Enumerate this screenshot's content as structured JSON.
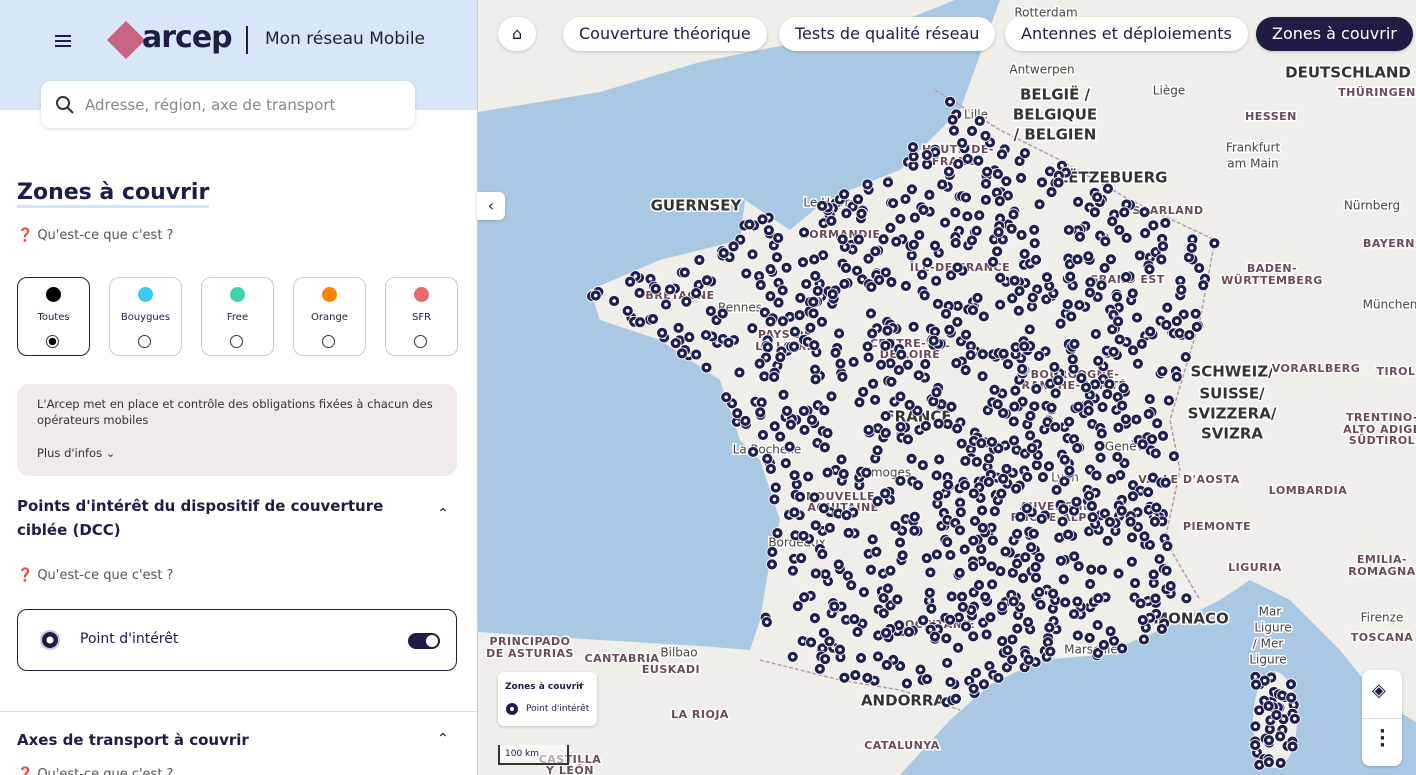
{
  "header": {
    "logo": "arcep",
    "app_name": "Mon réseau Mobile",
    "search_placeholder": "Adresse, région, axe de transport"
  },
  "nav": {
    "tabs": [
      "Couverture théorique",
      "Tests de qualité réseau",
      "Antennes et déploiements",
      "Zones à couvrir"
    ],
    "active": 3
  },
  "panel": {
    "title": "Zones à couvrir",
    "help": "Qu'est-ce que c'est ?",
    "operators": [
      {
        "name": "Toutes",
        "color": "#000000"
      },
      {
        "name": "Bouygues",
        "color": "#3cc8ef"
      },
      {
        "name": "Free",
        "color": "#3ed3b0"
      },
      {
        "name": "Orange",
        "color": "#ff8200"
      },
      {
        "name": "SFR",
        "color": "#e86a6a"
      }
    ],
    "selected_operator": 0,
    "info": "L'Arcep met en place et contrôle des obligations fixées à chacun des opérateurs mobiles",
    "more": "Plus d'infos",
    "sections": [
      {
        "title": "Points d'intérêt du dispositif de couverture ciblée (DCC)",
        "help": "Qu'est-ce que c'est ?",
        "toggle": {
          "label": "Point d'intérêt",
          "on": true
        }
      },
      {
        "title": "Axes de transport à couvrir",
        "help": "Qu'est-ce que c'est ?"
      }
    ]
  },
  "map": {
    "legend": {
      "title": "Zones à couvrir",
      "item": "Point d'intérêt"
    },
    "scale": "100 km",
    "labels": [
      "Rotterdam",
      "Antwerpen",
      "BELGIË /",
      "BELGIQUE",
      "/ BELGIEN",
      "Lille",
      "Liège",
      "DEUTSCHLAND",
      "THÜRINGEN",
      "HESSEN",
      "Frankfurt",
      "am Main",
      "LËTZEBUERG",
      "SAARLAND",
      "Nürnberg",
      "BAYERN",
      "BADEN-",
      "WÜRTTEMBERG",
      "München",
      "GUERNSEY",
      "Le Havre",
      "NORMANDIE",
      "HAUTS-DE-",
      "FRANCE",
      "ÎLE-DE-FRANCE",
      "GRAND EST",
      "BRETAGNE",
      "Rennes",
      "PAYS DE",
      "LA LOIRE",
      "CENTRE-VAL",
      "DE LOIRE",
      "BOURGOGNE-",
      "FRANCHE-COMTÉ",
      "FRANCE",
      "SCHWEIZ/",
      "SUISSE/",
      "SVIZZERA/",
      "SVIZRA",
      "VORARLBERG",
      "TIROL",
      "La Rochelle",
      "Limoges",
      "Genève",
      "VALLE D'AOSTA",
      "Lyon",
      "NOUVELLE-",
      "AQUITAINE",
      "AUVERGNE-",
      "RHÔNE-ALPES",
      "LOMBARDIA",
      "TRENTINO-",
      "ALTO ADIGE",
      "SÜDTIROL",
      "Bordeaux",
      "PIEMONTE",
      "EMILIA-",
      "ROMAGNA",
      "LIGURIA",
      "OCCITANIE",
      "MONACO",
      "Marseille",
      "Firenze",
      "TOSCANA",
      "Mar",
      "Ligure",
      "/ Mer",
      "Ligure",
      "PRINCIPADO",
      "DE ASTURIAS",
      "CANTABRIA",
      "Bilbao",
      "EUSKADI",
      "ANDORRA",
      "LA RIOJA",
      "CATALUNYA",
      "CASTILLA",
      "Y LEÓN"
    ]
  }
}
